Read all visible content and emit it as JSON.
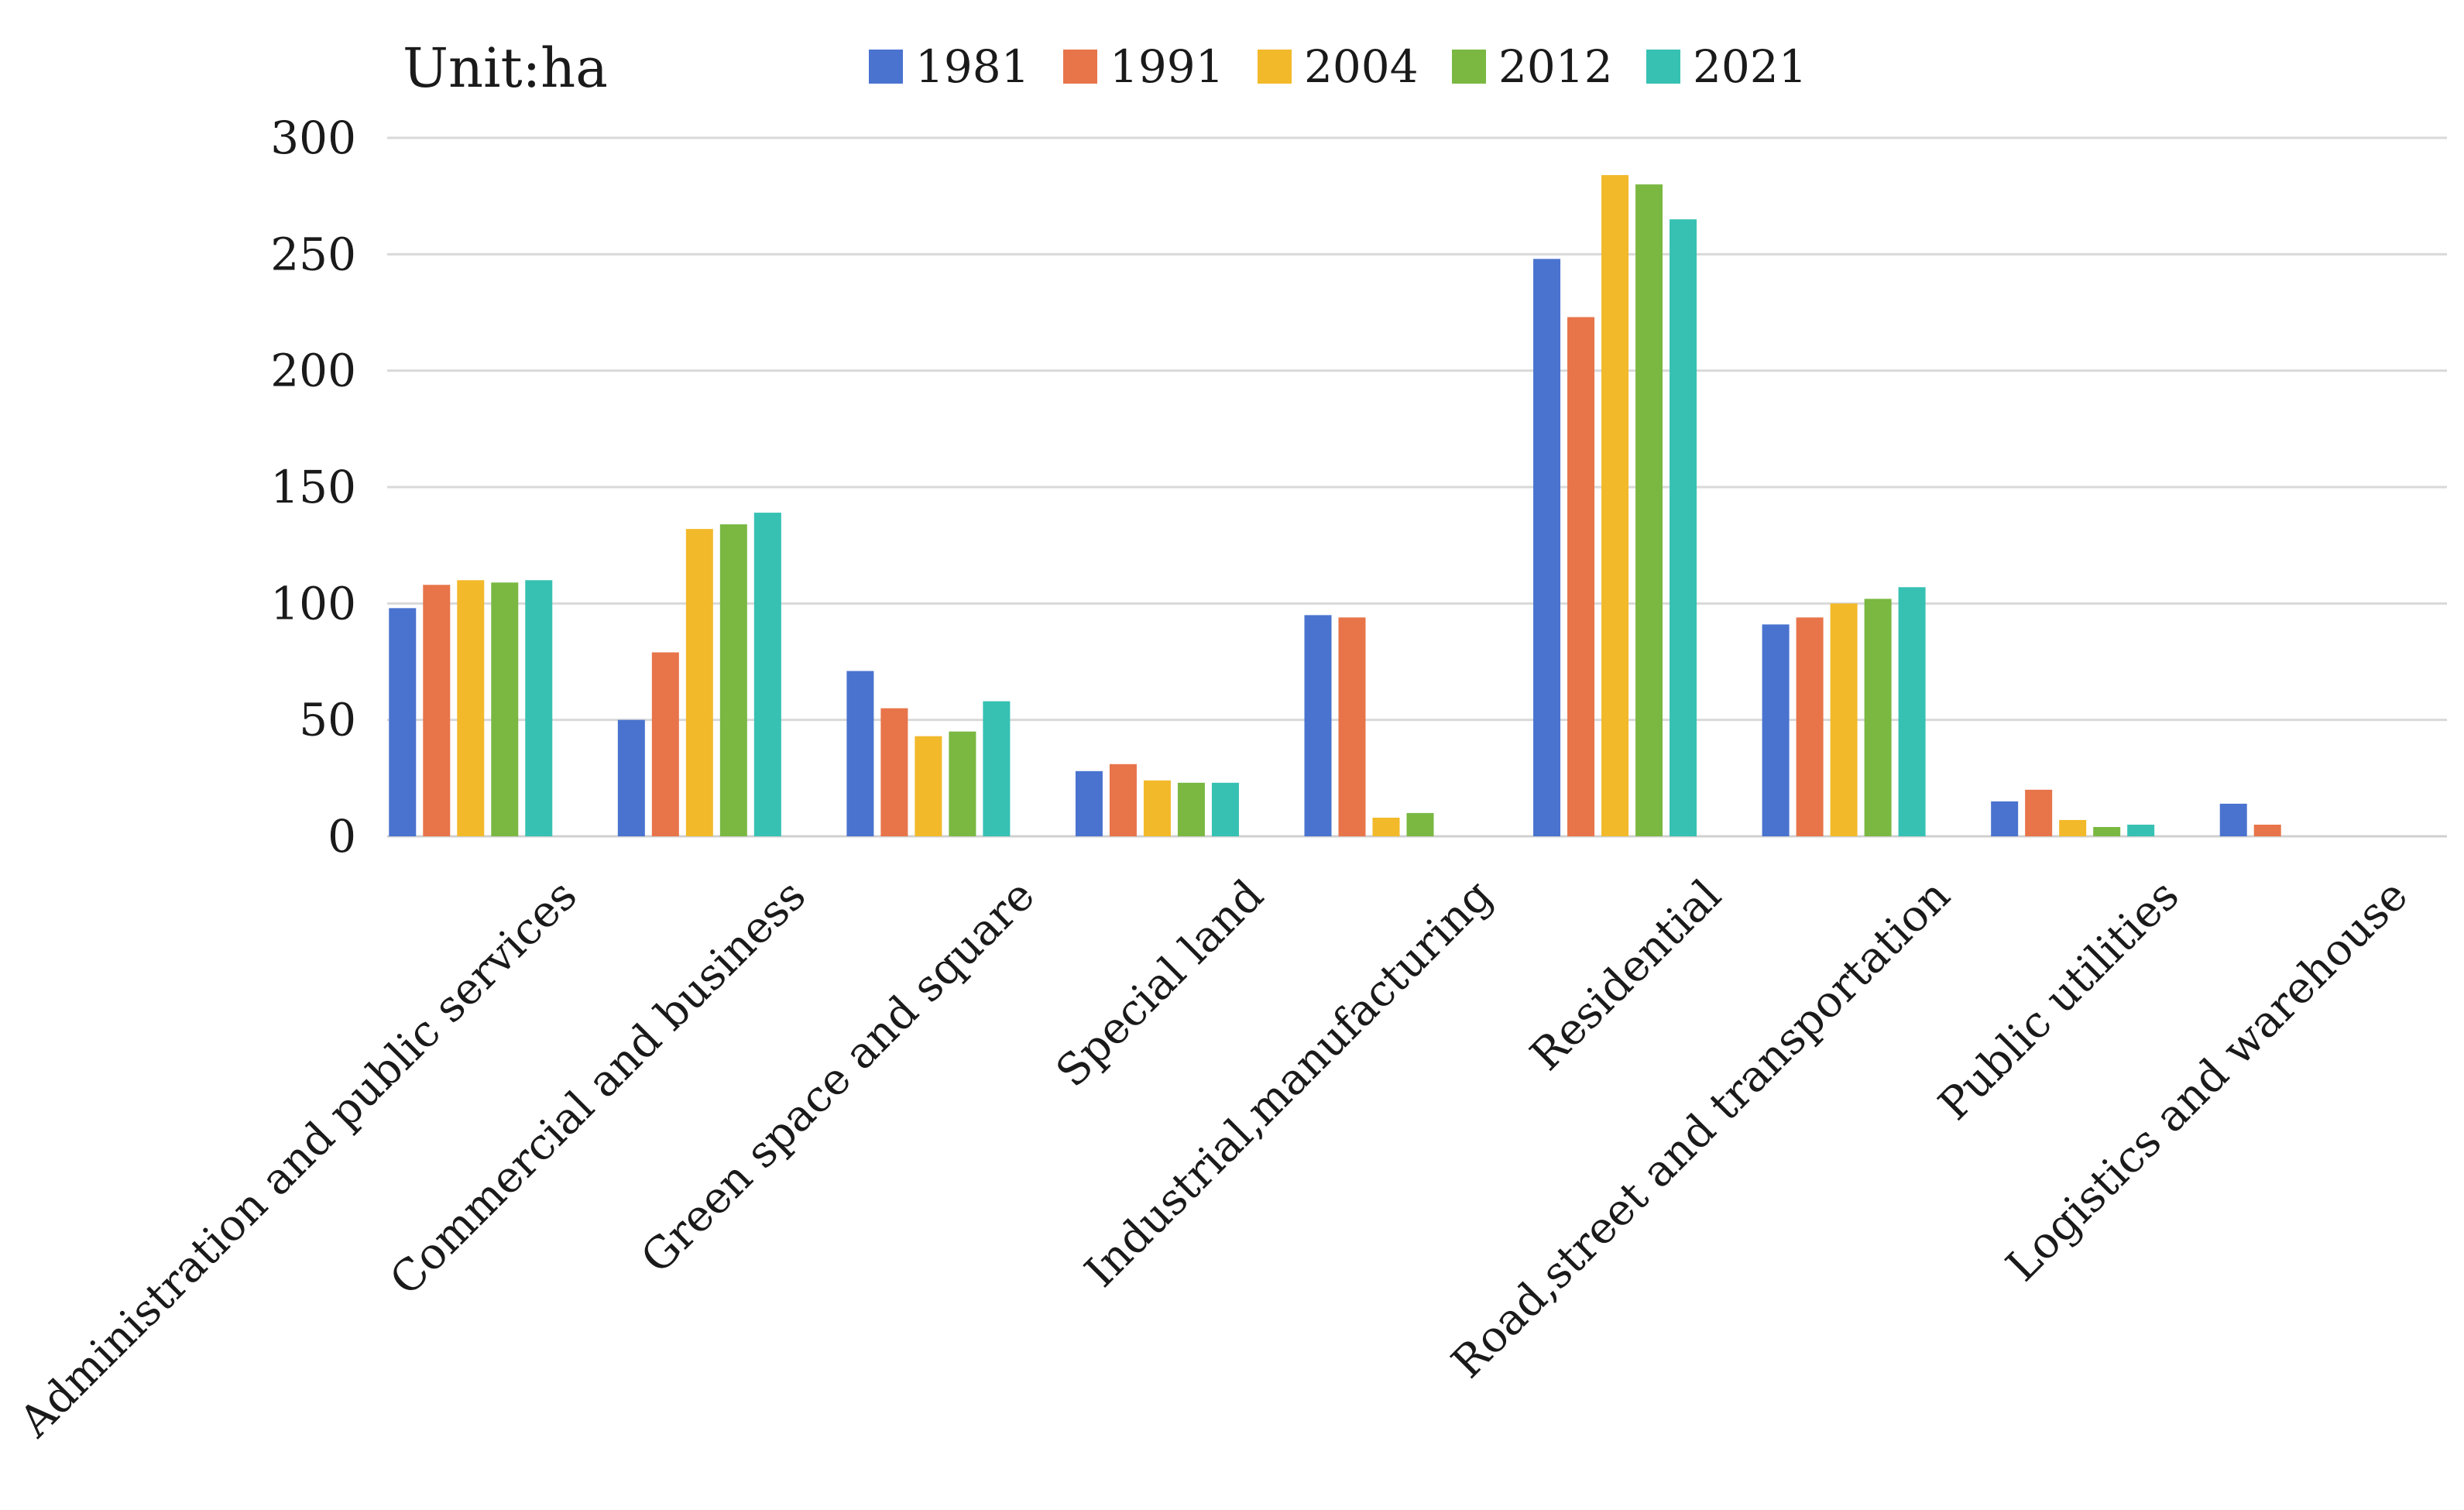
{
  "chart_data": {
    "type": "bar",
    "unit_label": "Unit:ha",
    "categories": [
      "Administration and public services",
      "Commercial and business",
      "Green space and square",
      "Special land",
      "Industrial,manufacturing",
      "Residential",
      "Road,street and transportation",
      "Public utilities",
      "Logistics and warehouse"
    ],
    "series": [
      {
        "name": "1981",
        "color": "#4a73cf",
        "values": [
          98,
          50,
          71,
          28,
          95,
          248,
          91,
          15,
          14
        ]
      },
      {
        "name": "1991",
        "color": "#e8744a",
        "values": [
          108,
          79,
          55,
          31,
          94,
          223,
          94,
          20,
          5
        ]
      },
      {
        "name": "2004",
        "color": "#f2b92a",
        "values": [
          110,
          132,
          43,
          24,
          8,
          284,
          100,
          7,
          0
        ]
      },
      {
        "name": "2012",
        "color": "#7ab842",
        "values": [
          109,
          134,
          45,
          23,
          10,
          280,
          102,
          4,
          0
        ]
      },
      {
        "name": "2021",
        "color": "#36c1b3",
        "values": [
          110,
          139,
          58,
          23,
          0,
          265,
          107,
          5,
          0
        ]
      }
    ],
    "yticks": [
      0,
      50,
      100,
      150,
      200,
      250,
      300
    ],
    "ylim": [
      0,
      300
    ],
    "grid": true,
    "legend": "top-center"
  }
}
